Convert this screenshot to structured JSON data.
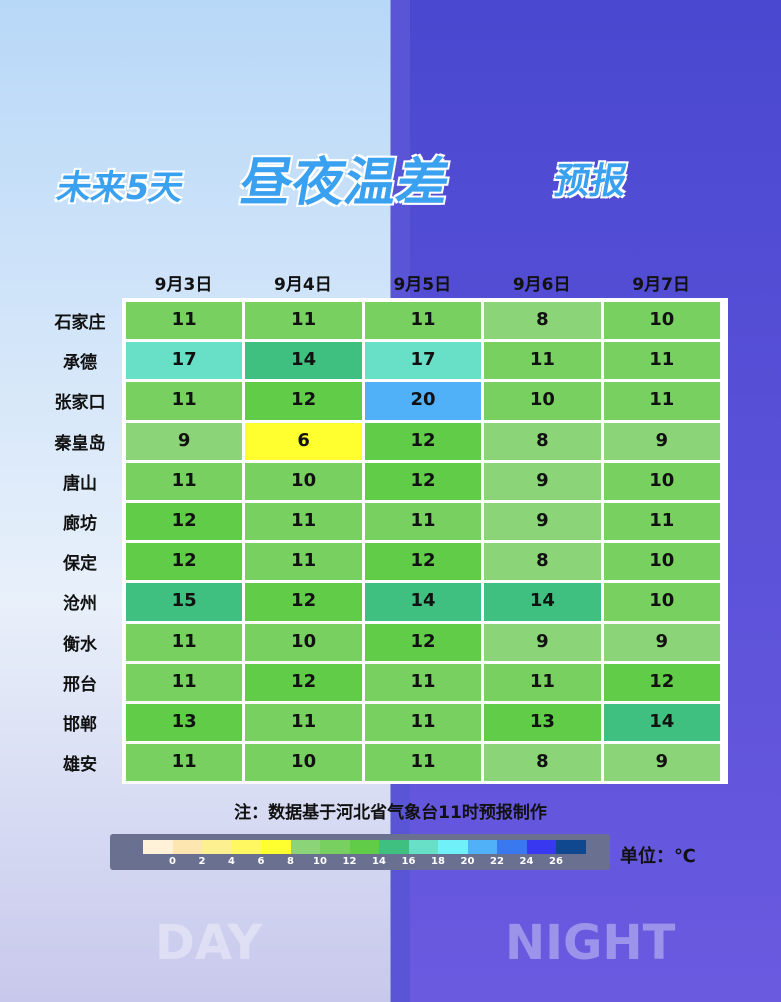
{
  "title": [
    "未来5天",
    "昼夜温差",
    "预报"
  ],
  "table": {
    "columns": [
      "9月3日",
      "9月4日",
      "9月5日",
      "9月6日",
      "9月7日"
    ],
    "rows": [
      {
        "name": "石家庄",
        "values": [
          11,
          11,
          11,
          8,
          10
        ]
      },
      {
        "name": "承德",
        "values": [
          17,
          14,
          17,
          11,
          11
        ]
      },
      {
        "name": "张家口",
        "values": [
          11,
          12,
          20,
          10,
          11
        ]
      },
      {
        "name": "秦皇岛",
        "values": [
          9,
          6,
          12,
          8,
          9
        ]
      },
      {
        "name": "唐山",
        "values": [
          11,
          10,
          12,
          9,
          10
        ]
      },
      {
        "name": "廊坊",
        "values": [
          12,
          11,
          11,
          9,
          11
        ]
      },
      {
        "name": "保定",
        "values": [
          12,
          11,
          12,
          8,
          10
        ]
      },
      {
        "name": "沧州",
        "values": [
          15,
          12,
          14,
          14,
          10
        ]
      },
      {
        "name": "衡水",
        "values": [
          11,
          10,
          12,
          9,
          9
        ]
      },
      {
        "name": "邢台",
        "values": [
          11,
          12,
          11,
          11,
          12
        ]
      },
      {
        "name": "邯郸",
        "values": [
          13,
          11,
          11,
          13,
          14
        ]
      },
      {
        "name": "雄安",
        "values": [
          11,
          10,
          11,
          8,
          9
        ]
      }
    ]
  },
  "note": "注：数据基于河北省气象台11时预报制作",
  "legend": {
    "colors": [
      "#fff2d8",
      "#fde6b0",
      "#fdf090",
      "#fff860",
      "#ffff30",
      "#8cd478",
      "#78d060",
      "#60cc48",
      "#40c080",
      "#68e0c8",
      "#70f0f8",
      "#50b0f8",
      "#3a78f0",
      "#3838f0",
      "#104890"
    ],
    "ticks": [
      0,
      2,
      4,
      6,
      8,
      10,
      12,
      14,
      16,
      18,
      20,
      22,
      24,
      26
    ]
  },
  "unit": "单位：℃",
  "background": {
    "day": "DAY",
    "night": "NIGHT"
  }
}
